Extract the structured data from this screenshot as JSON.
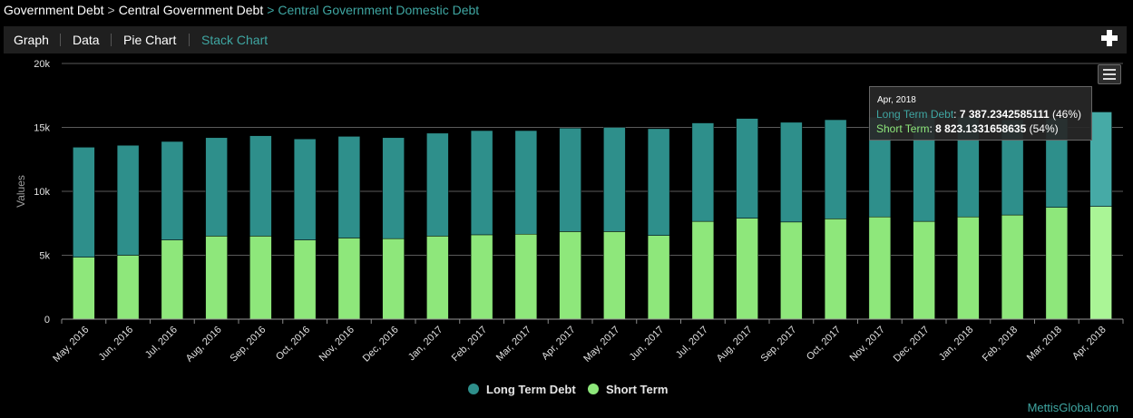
{
  "breadcrumb": {
    "item1": "Government Debt",
    "item2": "Central Government Debt",
    "current": "Central Government Domestic Debt",
    "separator": ">"
  },
  "tabs": [
    "Graph",
    "Data",
    "Pie Chart",
    "Stack Chart"
  ],
  "active_tab": "Stack Chart",
  "tooltip": {
    "date": "Apr, 2018",
    "long_label": "Long Term Debt",
    "long_value": "7 387.2342585111",
    "long_pct": "(46%)",
    "short_label": "Short Term",
    "short_value": "8 823.1331658635",
    "short_pct": "(54%)"
  },
  "credit": "MettisGlobal.com",
  "colors": {
    "long_term": "#2e8f8b",
    "short_term": "#8ee77b",
    "long_term_hover": "#46aaa6",
    "short_term_hover": "#aaf596",
    "accent": "#3fa6a2"
  },
  "chart_data": {
    "type": "bar",
    "stacked": true,
    "ylabel": "Values",
    "ylim": [
      0,
      20000
    ],
    "yticks": [
      0,
      5000,
      10000,
      15000,
      20000
    ],
    "ytick_labels": [
      "0",
      "5k",
      "10k",
      "15k",
      "20k"
    ],
    "grid": true,
    "legend_position": "bottom-center",
    "categories": [
      "May, 2016",
      "Jun, 2016",
      "Jul, 2016",
      "Aug, 2016",
      "Sep, 2016",
      "Oct, 2016",
      "Nov, 2016",
      "Dec, 2016",
      "Jan, 2017",
      "Feb, 2017",
      "Mar, 2017",
      "Apr, 2017",
      "May, 2017",
      "Jun, 2017",
      "Jul, 2017",
      "Aug, 2017",
      "Sep, 2017",
      "Oct, 2017",
      "Nov, 2017",
      "Dec, 2017",
      "Jan, 2018",
      "Feb, 2018",
      "Mar, 2018",
      "Apr, 2018"
    ],
    "series": [
      {
        "name": "Short Term",
        "values": [
          4850,
          5000,
          6200,
          6500,
          6500,
          6200,
          6350,
          6300,
          6500,
          6600,
          6650,
          6850,
          6850,
          6550,
          7650,
          7900,
          7600,
          7850,
          8000,
          7650,
          8000,
          8150,
          8750,
          8823.13
        ]
      },
      {
        "name": "Long Term Debt",
        "values": [
          8600,
          8600,
          7700,
          7700,
          7850,
          7900,
          7950,
          7900,
          8050,
          8150,
          8100,
          8100,
          8150,
          8350,
          7700,
          7800,
          7800,
          7750,
          7800,
          8350,
          7850,
          7450,
          6950,
          7387.23
        ]
      }
    ]
  }
}
